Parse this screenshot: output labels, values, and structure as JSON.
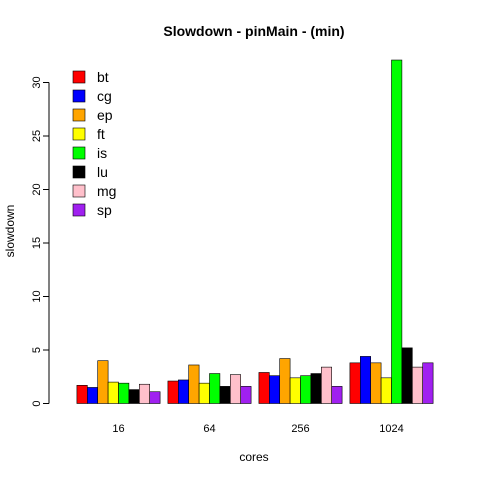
{
  "chart_data": {
    "type": "bar",
    "title": "Slowdown - pinMain - (min)",
    "xlabel": "cores",
    "ylabel": "slowdown",
    "categories": [
      "16",
      "64",
      "256",
      "1024"
    ],
    "ylim": [
      0,
      32
    ],
    "yticks": [
      0,
      5,
      10,
      15,
      20,
      25,
      30
    ],
    "grid": false,
    "legend_position": "top-left",
    "series": [
      {
        "name": "bt",
        "color": "#ff0000",
        "values": [
          1.7,
          2.1,
          2.9,
          3.8
        ]
      },
      {
        "name": "cg",
        "color": "#0000ff",
        "values": [
          1.5,
          2.2,
          2.6,
          4.4
        ]
      },
      {
        "name": "ep",
        "color": "#ffa500",
        "values": [
          4.0,
          3.6,
          4.2,
          3.8
        ]
      },
      {
        "name": "ft",
        "color": "#ffff00",
        "values": [
          2.0,
          1.9,
          2.4,
          2.4
        ]
      },
      {
        "name": "is",
        "color": "#00ff00",
        "values": [
          1.9,
          2.8,
          2.6,
          32.1
        ]
      },
      {
        "name": "lu",
        "color": "#000000",
        "values": [
          1.3,
          1.6,
          2.8,
          5.2
        ]
      },
      {
        "name": "mg",
        "color": "#ffc0cb",
        "values": [
          1.8,
          2.7,
          3.4,
          3.4
        ]
      },
      {
        "name": "sp",
        "color": "#a020f0",
        "values": [
          1.1,
          1.6,
          1.6,
          3.8
        ]
      }
    ]
  }
}
